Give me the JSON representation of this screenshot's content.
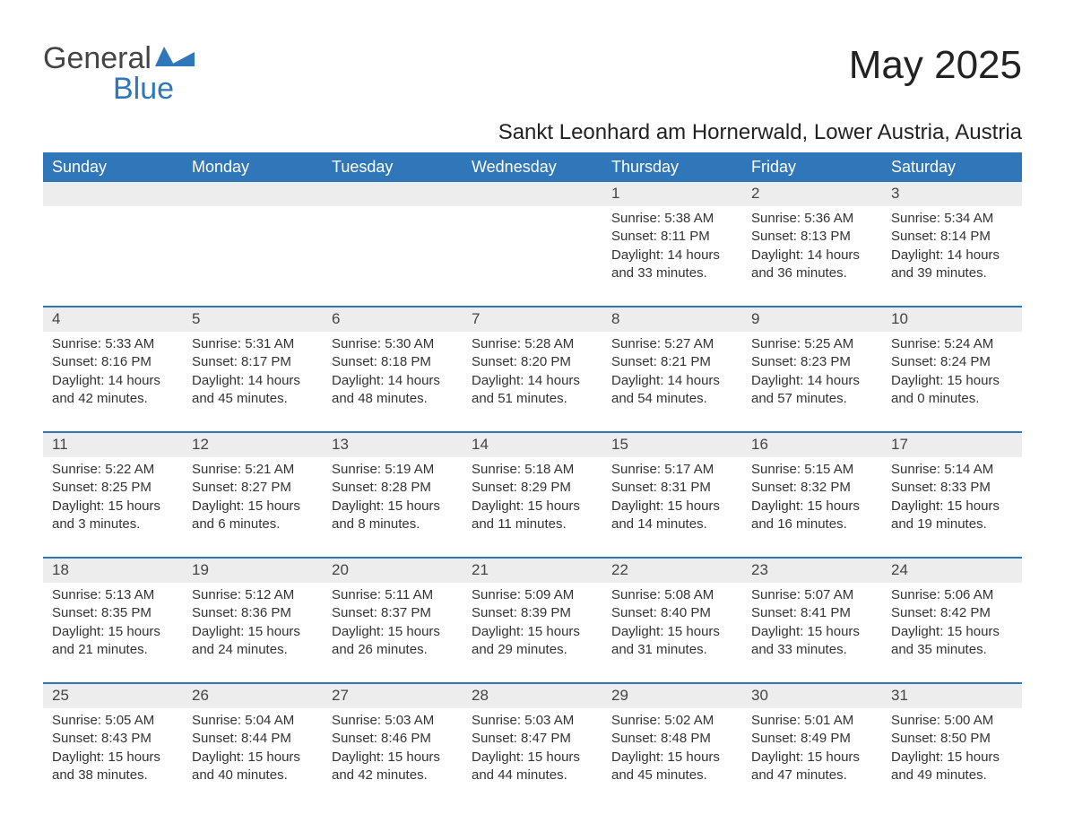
{
  "brand": {
    "word1": "General",
    "word2": "Blue",
    "accent": "#2f77b8",
    "text_color": "#444444"
  },
  "title": "May 2025",
  "subtitle": "Sankt Leonhard am Hornerwald, Lower Austria, Austria",
  "table": {
    "header_bg": "#2f77b8",
    "header_fg": "#ffffff",
    "row_stripe_bg": "#ededed",
    "row_border_color": "#2f77b8",
    "columns": [
      "Sunday",
      "Monday",
      "Tuesday",
      "Wednesday",
      "Thursday",
      "Friday",
      "Saturday"
    ],
    "font_family": "Arial",
    "header_fontsize": 18,
    "daynum_fontsize": 17,
    "body_fontsize": 15
  },
  "weeks": [
    [
      null,
      null,
      null,
      null,
      {
        "day": "1",
        "sunrise": "Sunrise: 5:38 AM",
        "sunset": "Sunset: 8:11 PM",
        "daylight": "Daylight: 14 hours and 33 minutes."
      },
      {
        "day": "2",
        "sunrise": "Sunrise: 5:36 AM",
        "sunset": "Sunset: 8:13 PM",
        "daylight": "Daylight: 14 hours and 36 minutes."
      },
      {
        "day": "3",
        "sunrise": "Sunrise: 5:34 AM",
        "sunset": "Sunset: 8:14 PM",
        "daylight": "Daylight: 14 hours and 39 minutes."
      }
    ],
    [
      {
        "day": "4",
        "sunrise": "Sunrise: 5:33 AM",
        "sunset": "Sunset: 8:16 PM",
        "daylight": "Daylight: 14 hours and 42 minutes."
      },
      {
        "day": "5",
        "sunrise": "Sunrise: 5:31 AM",
        "sunset": "Sunset: 8:17 PM",
        "daylight": "Daylight: 14 hours and 45 minutes."
      },
      {
        "day": "6",
        "sunrise": "Sunrise: 5:30 AM",
        "sunset": "Sunset: 8:18 PM",
        "daylight": "Daylight: 14 hours and 48 minutes."
      },
      {
        "day": "7",
        "sunrise": "Sunrise: 5:28 AM",
        "sunset": "Sunset: 8:20 PM",
        "daylight": "Daylight: 14 hours and 51 minutes."
      },
      {
        "day": "8",
        "sunrise": "Sunrise: 5:27 AM",
        "sunset": "Sunset: 8:21 PM",
        "daylight": "Daylight: 14 hours and 54 minutes."
      },
      {
        "day": "9",
        "sunrise": "Sunrise: 5:25 AM",
        "sunset": "Sunset: 8:23 PM",
        "daylight": "Daylight: 14 hours and 57 minutes."
      },
      {
        "day": "10",
        "sunrise": "Sunrise: 5:24 AM",
        "sunset": "Sunset: 8:24 PM",
        "daylight": "Daylight: 15 hours and 0 minutes."
      }
    ],
    [
      {
        "day": "11",
        "sunrise": "Sunrise: 5:22 AM",
        "sunset": "Sunset: 8:25 PM",
        "daylight": "Daylight: 15 hours and 3 minutes."
      },
      {
        "day": "12",
        "sunrise": "Sunrise: 5:21 AM",
        "sunset": "Sunset: 8:27 PM",
        "daylight": "Daylight: 15 hours and 6 minutes."
      },
      {
        "day": "13",
        "sunrise": "Sunrise: 5:19 AM",
        "sunset": "Sunset: 8:28 PM",
        "daylight": "Daylight: 15 hours and 8 minutes."
      },
      {
        "day": "14",
        "sunrise": "Sunrise: 5:18 AM",
        "sunset": "Sunset: 8:29 PM",
        "daylight": "Daylight: 15 hours and 11 minutes."
      },
      {
        "day": "15",
        "sunrise": "Sunrise: 5:17 AM",
        "sunset": "Sunset: 8:31 PM",
        "daylight": "Daylight: 15 hours and 14 minutes."
      },
      {
        "day": "16",
        "sunrise": "Sunrise: 5:15 AM",
        "sunset": "Sunset: 8:32 PM",
        "daylight": "Daylight: 15 hours and 16 minutes."
      },
      {
        "day": "17",
        "sunrise": "Sunrise: 5:14 AM",
        "sunset": "Sunset: 8:33 PM",
        "daylight": "Daylight: 15 hours and 19 minutes."
      }
    ],
    [
      {
        "day": "18",
        "sunrise": "Sunrise: 5:13 AM",
        "sunset": "Sunset: 8:35 PM",
        "daylight": "Daylight: 15 hours and 21 minutes."
      },
      {
        "day": "19",
        "sunrise": "Sunrise: 5:12 AM",
        "sunset": "Sunset: 8:36 PM",
        "daylight": "Daylight: 15 hours and 24 minutes."
      },
      {
        "day": "20",
        "sunrise": "Sunrise: 5:11 AM",
        "sunset": "Sunset: 8:37 PM",
        "daylight": "Daylight: 15 hours and 26 minutes."
      },
      {
        "day": "21",
        "sunrise": "Sunrise: 5:09 AM",
        "sunset": "Sunset: 8:39 PM",
        "daylight": "Daylight: 15 hours and 29 minutes."
      },
      {
        "day": "22",
        "sunrise": "Sunrise: 5:08 AM",
        "sunset": "Sunset: 8:40 PM",
        "daylight": "Daylight: 15 hours and 31 minutes."
      },
      {
        "day": "23",
        "sunrise": "Sunrise: 5:07 AM",
        "sunset": "Sunset: 8:41 PM",
        "daylight": "Daylight: 15 hours and 33 minutes."
      },
      {
        "day": "24",
        "sunrise": "Sunrise: 5:06 AM",
        "sunset": "Sunset: 8:42 PM",
        "daylight": "Daylight: 15 hours and 35 minutes."
      }
    ],
    [
      {
        "day": "25",
        "sunrise": "Sunrise: 5:05 AM",
        "sunset": "Sunset: 8:43 PM",
        "daylight": "Daylight: 15 hours and 38 minutes."
      },
      {
        "day": "26",
        "sunrise": "Sunrise: 5:04 AM",
        "sunset": "Sunset: 8:44 PM",
        "daylight": "Daylight: 15 hours and 40 minutes."
      },
      {
        "day": "27",
        "sunrise": "Sunrise: 5:03 AM",
        "sunset": "Sunset: 8:46 PM",
        "daylight": "Daylight: 15 hours and 42 minutes."
      },
      {
        "day": "28",
        "sunrise": "Sunrise: 5:03 AM",
        "sunset": "Sunset: 8:47 PM",
        "daylight": "Daylight: 15 hours and 44 minutes."
      },
      {
        "day": "29",
        "sunrise": "Sunrise: 5:02 AM",
        "sunset": "Sunset: 8:48 PM",
        "daylight": "Daylight: 15 hours and 45 minutes."
      },
      {
        "day": "30",
        "sunrise": "Sunrise: 5:01 AM",
        "sunset": "Sunset: 8:49 PM",
        "daylight": "Daylight: 15 hours and 47 minutes."
      },
      {
        "day": "31",
        "sunrise": "Sunrise: 5:00 AM",
        "sunset": "Sunset: 8:50 PM",
        "daylight": "Daylight: 15 hours and 49 minutes."
      }
    ]
  ]
}
